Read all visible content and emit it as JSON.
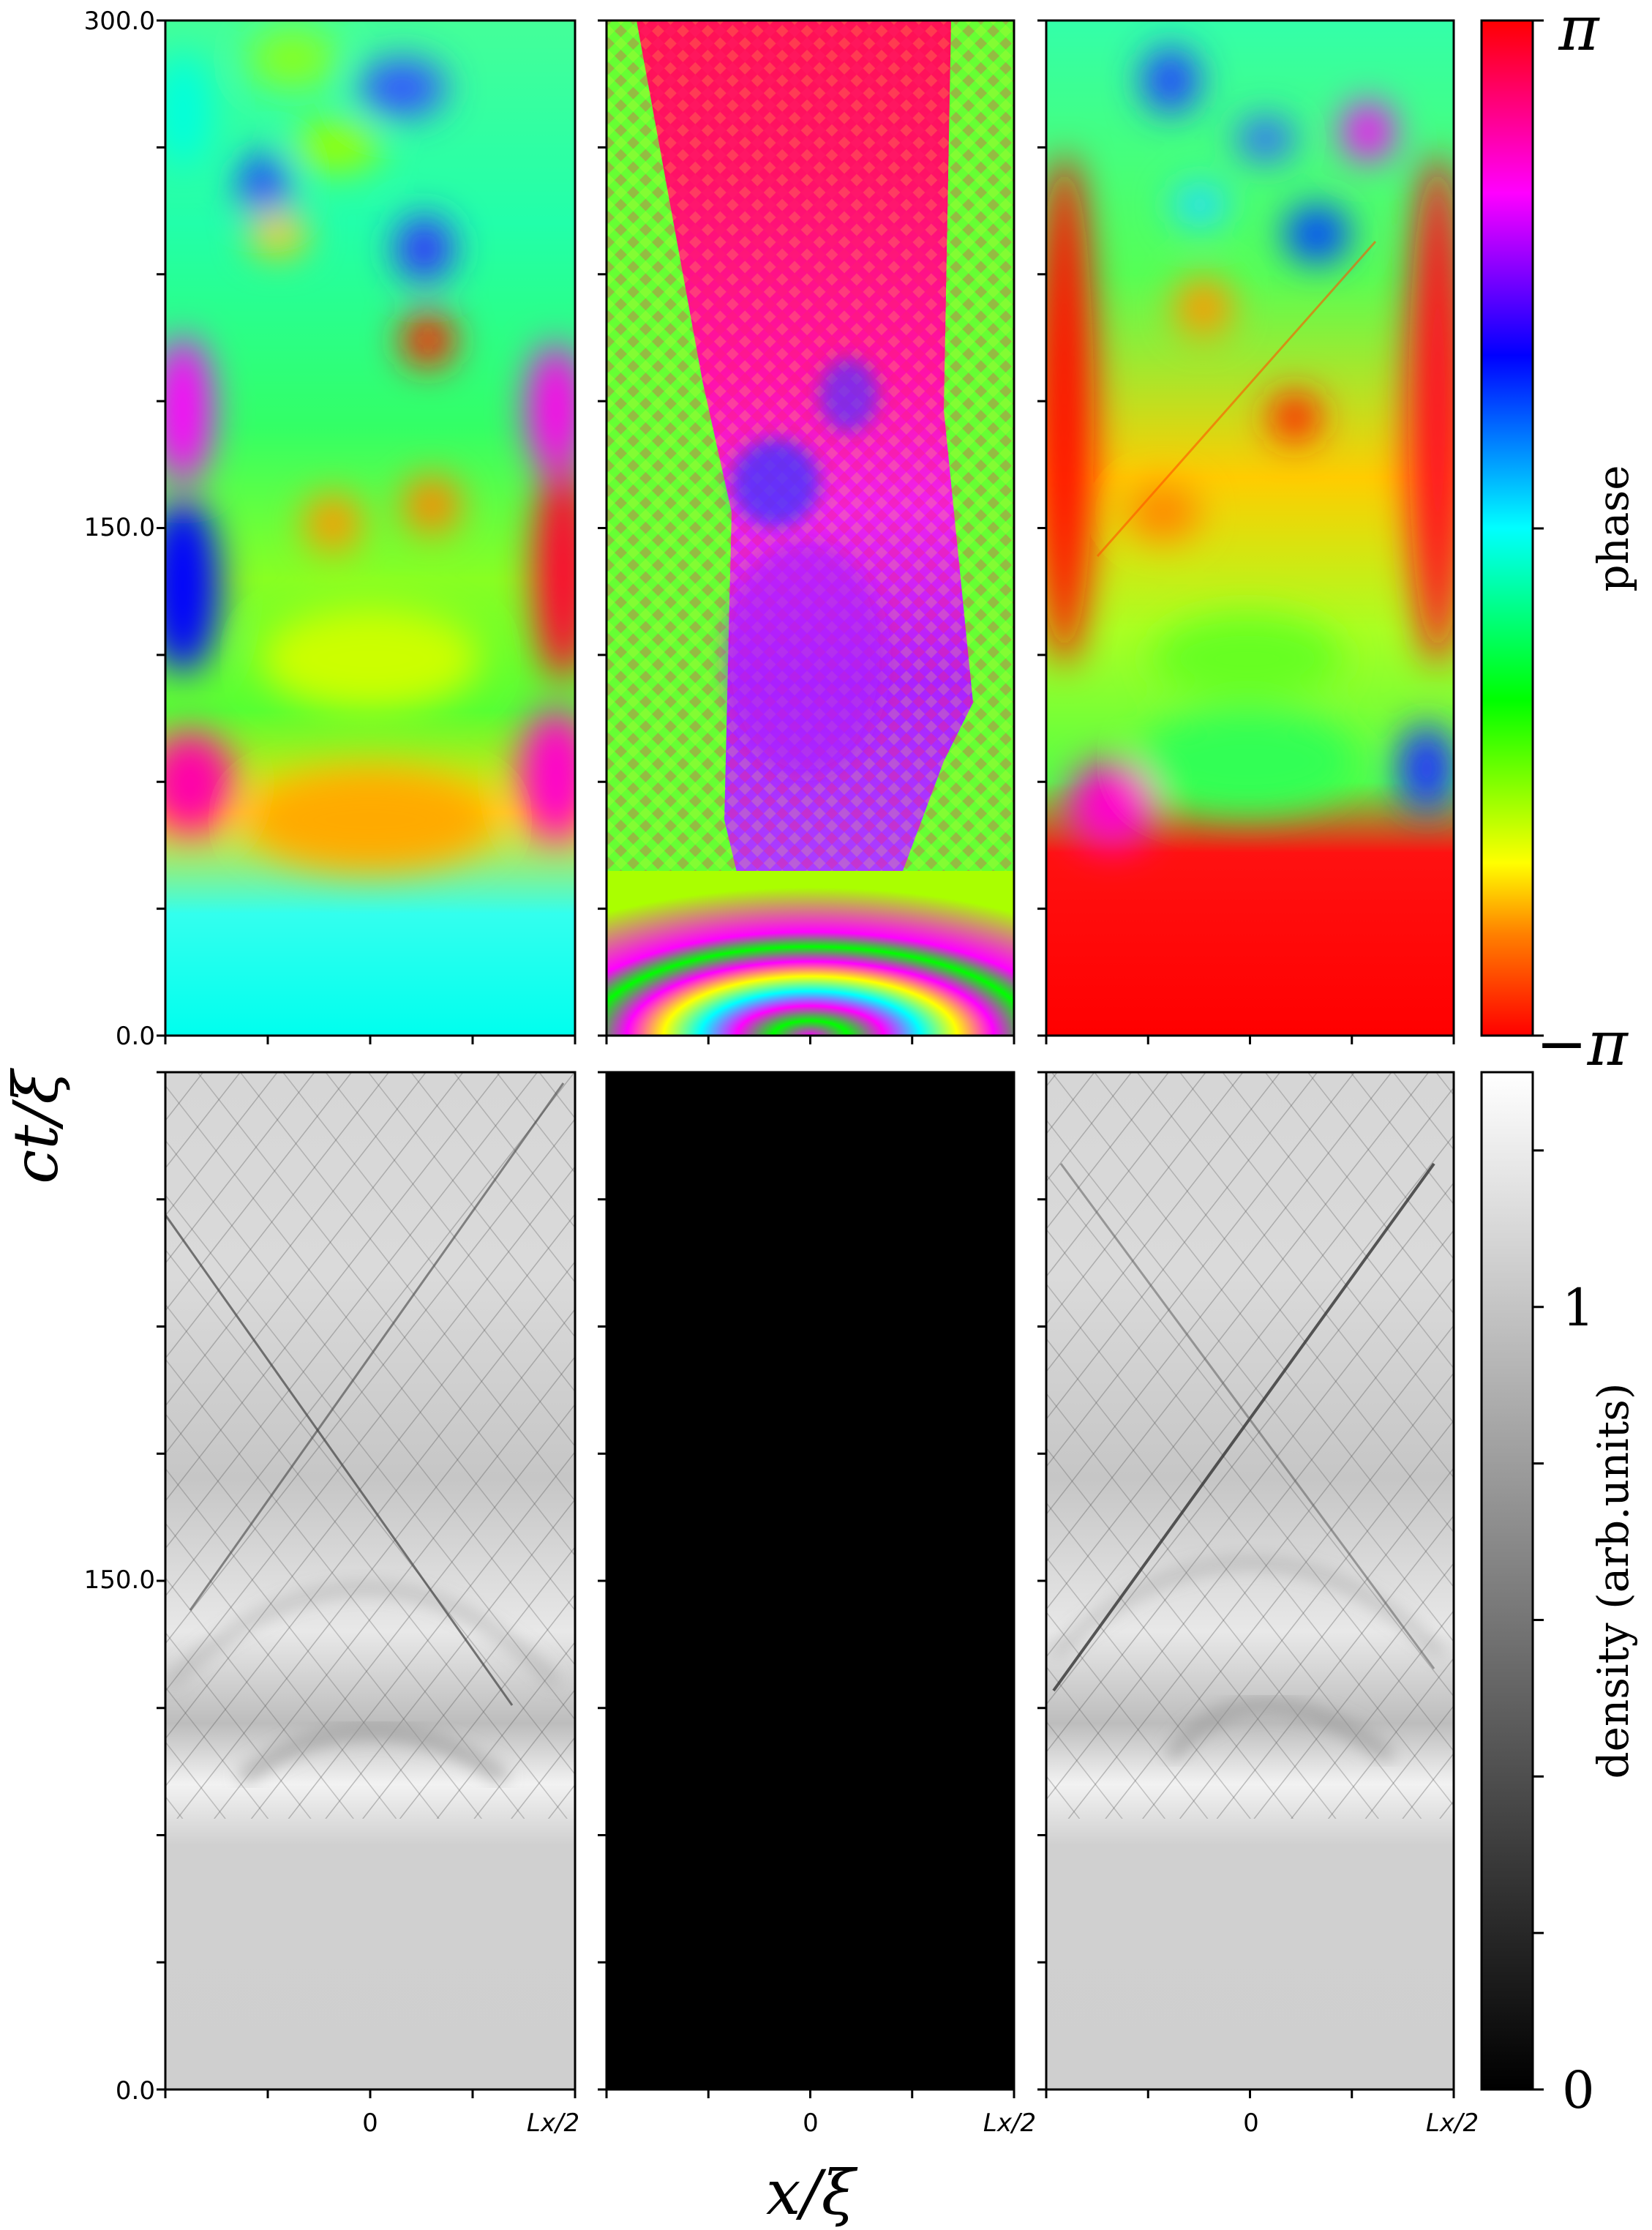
{
  "figure": {
    "ylabel": "ct/ξ",
    "xlabel": "x/ξ"
  },
  "chart_data": [
    {
      "type": "heatmap",
      "name": "phase-panel-left",
      "row": "top",
      "quantity": "phase",
      "colormap": "hsv",
      "y_range": [
        0.0,
        300.0
      ],
      "y_ticks": [
        "0.0",
        "150.0",
        "300.0"
      ],
      "x_ticks": [
        "0",
        "Lx/2"
      ]
    },
    {
      "type": "heatmap",
      "name": "phase-panel-middle",
      "row": "top",
      "quantity": "phase",
      "colormap": "hsv",
      "y_range": [
        0.0,
        300.0
      ]
    },
    {
      "type": "heatmap",
      "name": "phase-panel-right",
      "row": "top",
      "quantity": "phase",
      "colormap": "hsv",
      "y_range": [
        0.0,
        300.0
      ]
    },
    {
      "type": "heatmap",
      "name": "density-panel-left",
      "row": "bottom",
      "quantity": "density",
      "colormap": "gray",
      "y_ticks": [
        "0.0",
        "150.0"
      ],
      "x_ticks": [
        "0",
        "Lx/2"
      ]
    },
    {
      "type": "heatmap",
      "name": "density-panel-middle",
      "row": "bottom",
      "quantity": "density",
      "colormap": "gray",
      "x_ticks": [
        "0",
        "Lx/2"
      ],
      "uniform_value": 0
    },
    {
      "type": "heatmap",
      "name": "density-panel-right",
      "row": "bottom",
      "quantity": "density",
      "colormap": "gray",
      "x_ticks": [
        "0",
        "Lx/2"
      ]
    }
  ],
  "colorbars": {
    "phase": {
      "label": "phase",
      "min_label": "−π",
      "max_label": "π",
      "colormap": "hsv"
    },
    "density": {
      "label": "density (arb.units)",
      "tick_labels": [
        "0",
        "1"
      ],
      "tick_values": [
        0,
        1
      ],
      "range": [
        0,
        1.3
      ],
      "colormap": "gray"
    }
  },
  "colors": {
    "frame": "#000000",
    "density_background": "#cfcfcf",
    "density_black": "#000000"
  }
}
